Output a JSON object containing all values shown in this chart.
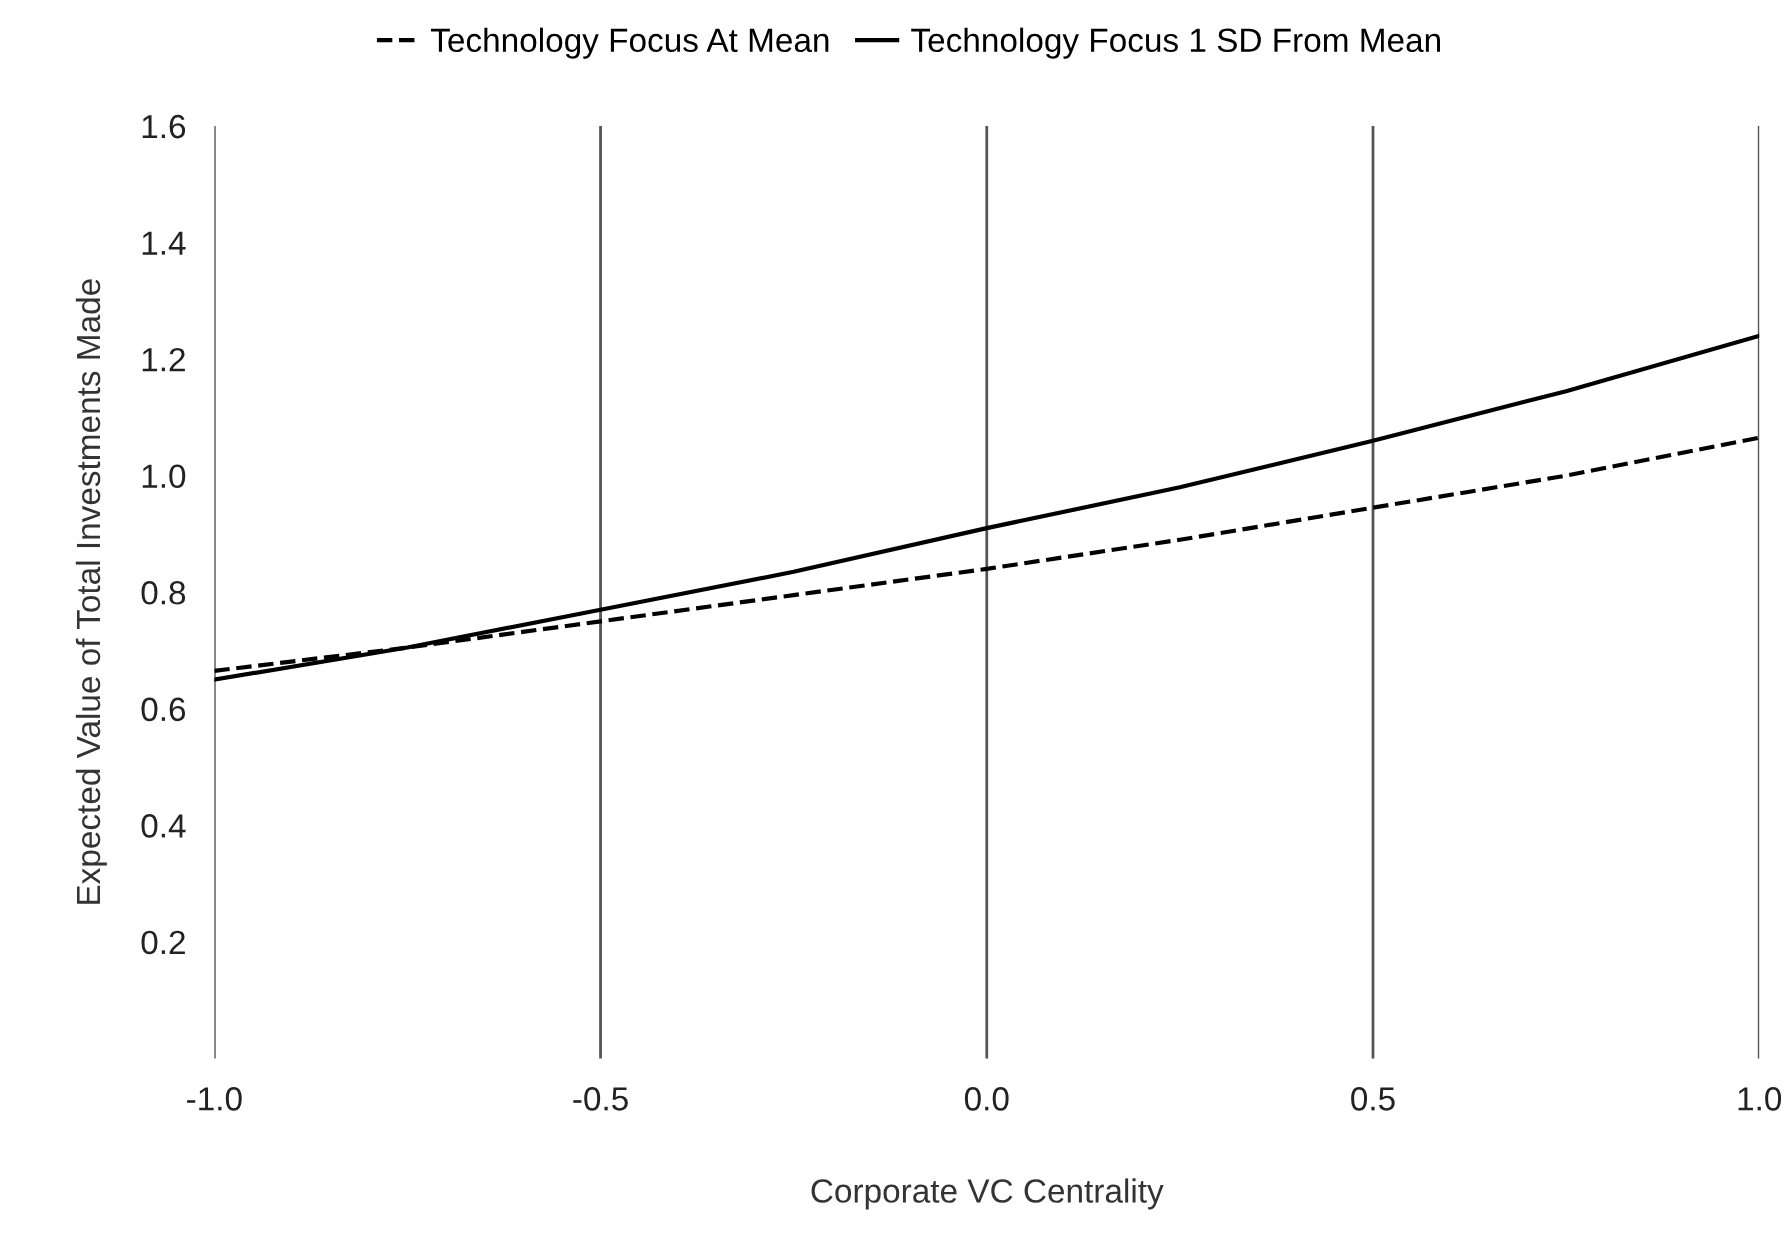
{
  "chart_data": {
    "type": "line",
    "xlabel": "Corporate VC Centrality",
    "ylabel": "Expected Value of Total Investments Made",
    "x": [
      -1.0,
      -0.75,
      -0.5,
      -0.25,
      0.0,
      0.25,
      0.5,
      0.75,
      1.0
    ],
    "series": [
      {
        "name": "Technology Focus At Mean",
        "color": "#000000",
        "line_style": "dashed",
        "values": [
          0.665,
          0.705,
          0.75,
          0.795,
          0.84,
          0.89,
          0.945,
          1.0,
          1.065
        ]
      },
      {
        "name": "Technology Focus 1 SD From Mean",
        "color": "#000000",
        "line_style": "solid",
        "values": [
          0.65,
          0.705,
          0.77,
          0.835,
          0.91,
          0.98,
          1.06,
          1.145,
          1.24
        ]
      }
    ],
    "xlim": [
      -1.0,
      1.0
    ],
    "xticks": [
      {
        "value": -1,
        "label": "-1.0"
      },
      -0.5,
      {
        "value": 0,
        "label": "0.0"
      },
      0.5,
      {
        "value": 1,
        "label": "1.0"
      }
    ],
    "ylim": [
      0,
      1.6
    ],
    "yticks": [
      0.2,
      0.4,
      0.6,
      0.8,
      {
        "value": 1,
        "label": "1.0"
      },
      1.2,
      1.4,
      1.6
    ],
    "grid": "x",
    "legend": "top",
    "marker": "none"
  }
}
